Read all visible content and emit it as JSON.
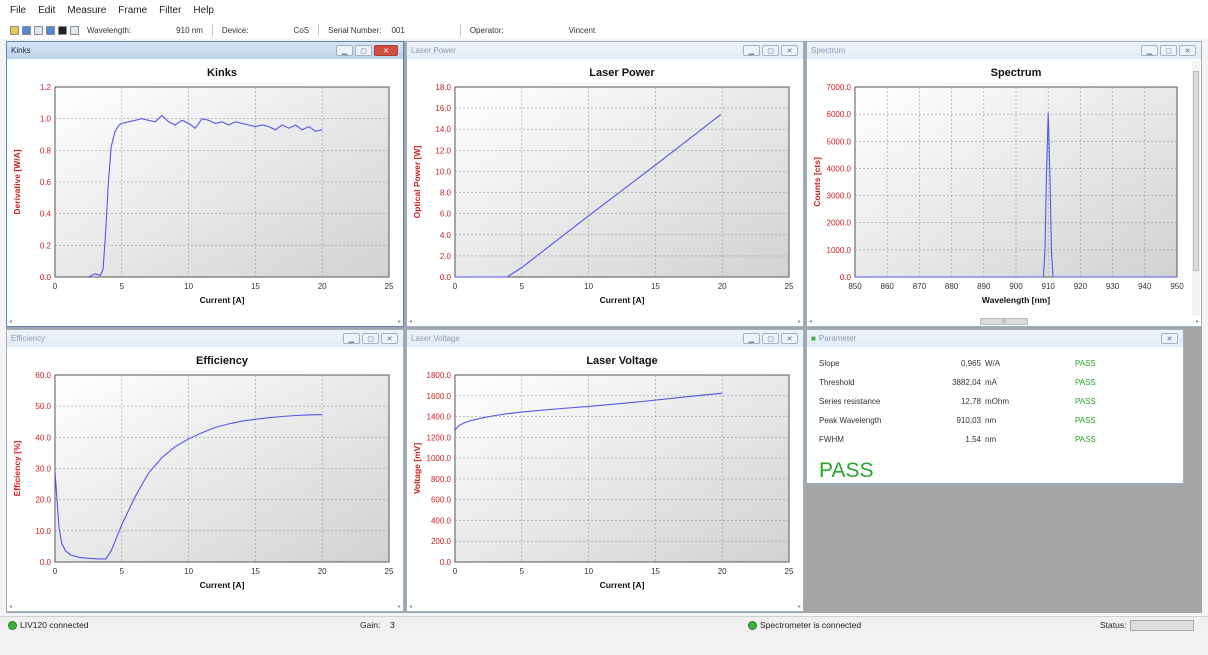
{
  "menu": [
    "File",
    "Edit",
    "Measure",
    "Frame",
    "Filter",
    "Help"
  ],
  "toolbar": {
    "wavelength_label": "Wavelength:",
    "wavelength_value": "910 nm",
    "device_label": "Device:",
    "device_value": "CoS",
    "serial_label": "Serial Number:",
    "serial_value": "001",
    "operator_label": "Operator:",
    "operator_value": "Vincent"
  },
  "windows": {
    "kinks": {
      "title": "Kinks"
    },
    "laser_power": {
      "title": "Laser Power"
    },
    "spectrum": {
      "title": "Spectrum",
      "scroll_label": "III"
    },
    "efficiency": {
      "title": "Efficiency"
    },
    "laser_voltage": {
      "title": "Laser Voltage"
    },
    "parameter": {
      "title": "Parameter"
    }
  },
  "chart_data": [
    {
      "id": "kinks",
      "type": "line",
      "title": "Kinks",
      "xlabel": "Current [A]",
      "ylabel": "Derivative [W/A]",
      "xlim": [
        0,
        25
      ],
      "ylim": [
        0,
        1.2
      ],
      "xticks": [
        "0",
        "5",
        "10",
        "15",
        "20",
        "25"
      ],
      "yticks": [
        "0.0",
        "0.2",
        "0.4",
        "0.6",
        "0.8",
        "1.0",
        "1.2"
      ],
      "grid": true,
      "series": [
        {
          "color": "#5555ee",
          "x": [
            2.5,
            3.0,
            3.4,
            3.6,
            3.8,
            4.0,
            4.2,
            4.5,
            4.8,
            5.0,
            5.5,
            6,
            6.5,
            7,
            7.5,
            8,
            8.5,
            9,
            9.5,
            10,
            10.5,
            11,
            11.5,
            12,
            12.5,
            13,
            13.5,
            14,
            14.5,
            15,
            15.5,
            16,
            16.5,
            17,
            17.5,
            18,
            18.5,
            19,
            19.5,
            20
          ],
          "y": [
            0.0,
            0.02,
            0.01,
            0.05,
            0.3,
            0.6,
            0.82,
            0.92,
            0.96,
            0.97,
            0.98,
            0.99,
            1.0,
            0.99,
            0.98,
            1.02,
            0.98,
            0.96,
            0.99,
            0.97,
            0.94,
            1.0,
            0.99,
            0.97,
            0.98,
            0.96,
            0.98,
            0.97,
            0.96,
            0.95,
            0.96,
            0.95,
            0.93,
            0.96,
            0.94,
            0.96,
            0.93,
            0.95,
            0.92,
            0.93
          ]
        }
      ]
    },
    {
      "id": "laser_power",
      "type": "line",
      "title": "Laser Power",
      "xlabel": "Current [A]",
      "ylabel": "Optical Power [W]",
      "xlim": [
        0,
        25
      ],
      "ylim": [
        0,
        18
      ],
      "xticks": [
        "0",
        "5",
        "10",
        "15",
        "20",
        "25"
      ],
      "yticks": [
        "0.0",
        "2.0",
        "4.0",
        "6.0",
        "8.0",
        "10.0",
        "12.0",
        "14.0",
        "16.0",
        "18.0"
      ],
      "grid": true,
      "series": [
        {
          "color": "#5555ee",
          "x": [
            0,
            3.9,
            5,
            10,
            15,
            19.9
          ],
          "y": [
            0,
            0,
            0.9,
            5.8,
            10.6,
            15.4
          ]
        }
      ]
    },
    {
      "id": "spectrum",
      "type": "line",
      "title": "Spectrum",
      "xlabel": "Wavelength [nm]",
      "ylabel": "Counts [cts]",
      "xlim": [
        850,
        950
      ],
      "ylim": [
        0,
        7000
      ],
      "xticks": [
        "850",
        "860",
        "870",
        "880",
        "890",
        "900",
        "910",
        "920",
        "930",
        "940",
        "950"
      ],
      "yticks": [
        "0.0",
        "1000.0",
        "2000.0",
        "3000.0",
        "4000.0",
        "5000.0",
        "6000.0",
        "7000.0"
      ],
      "grid": true,
      "series": [
        {
          "color": "#5555ee",
          "x": [
            850,
            908.5,
            909.0,
            909.4,
            910.0,
            910.6,
            911.0,
            911.5,
            950
          ],
          "y": [
            0,
            0,
            1000,
            3500,
            6050,
            3500,
            1000,
            0,
            0
          ]
        }
      ]
    },
    {
      "id": "efficiency",
      "type": "line",
      "title": "Efficiency",
      "xlabel": "Current [A]",
      "ylabel": "Efficiency [%]",
      "xlim": [
        0,
        25
      ],
      "ylim": [
        0,
        60
      ],
      "xticks": [
        "0",
        "5",
        "10",
        "15",
        "20",
        "25"
      ],
      "yticks": [
        "0.0",
        "10.0",
        "20.0",
        "30.0",
        "40.0",
        "50.0",
        "60.0"
      ],
      "grid": true,
      "series": [
        {
          "color": "#5555ee",
          "x": [
            0,
            0.15,
            0.3,
            0.5,
            0.8,
            1.2,
            1.8,
            2.5,
            3.2,
            3.8,
            4.2,
            5,
            6,
            7,
            8,
            9,
            10,
            11,
            12,
            13,
            14,
            15,
            16,
            17,
            18,
            19,
            20
          ],
          "y": [
            29,
            20,
            11,
            6,
            3.5,
            2.2,
            1.5,
            1.2,
            1.0,
            1.0,
            3.5,
            12,
            21,
            28.5,
            33.5,
            37,
            39.5,
            41.5,
            43.2,
            44.3,
            45.2,
            45.8,
            46.3,
            46.7,
            47.0,
            47.2,
            47.3
          ]
        }
      ]
    },
    {
      "id": "laser_voltage",
      "type": "line",
      "title": "Laser Voltage",
      "xlabel": "Current [A]",
      "ylabel": "Voltage [mV]",
      "xlim": [
        0,
        25
      ],
      "ylim": [
        0,
        1800
      ],
      "xticks": [
        "0",
        "5",
        "10",
        "15",
        "20",
        "25"
      ],
      "yticks": [
        "0.0",
        "200.0",
        "400.0",
        "600.0",
        "800.0",
        "1000.0",
        "1200.0",
        "1400.0",
        "1600.0",
        "1800.0"
      ],
      "grid": true,
      "series": [
        {
          "color": "#5555ee",
          "x": [
            0,
            0.3,
            0.7,
            1.2,
            2,
            3,
            4,
            5,
            6,
            8,
            10,
            12,
            14,
            16,
            18,
            20
          ],
          "y": [
            1270,
            1315,
            1340,
            1362,
            1385,
            1410,
            1428,
            1443,
            1455,
            1478,
            1498,
            1520,
            1545,
            1572,
            1600,
            1625
          ]
        }
      ]
    }
  ],
  "parameters": {
    "rows": [
      {
        "name": "Slope",
        "value": "0,965",
        "unit": "W/A",
        "result": "PASS"
      },
      {
        "name": "Threshold",
        "value": "3882,04",
        "unit": "mA",
        "result": "PASS"
      },
      {
        "name": "Series resistance",
        "value": "12,78",
        "unit": "mOhm",
        "result": "PASS"
      },
      {
        "name": "Peak Wavelength",
        "value": "910,03",
        "unit": "nm",
        "result": "PASS"
      },
      {
        "name": "FWHM",
        "value": "1,54",
        "unit": "nm",
        "result": "PASS"
      }
    ],
    "overall": "PASS"
  },
  "status": {
    "liv": "LIV120 connected",
    "gain_label": "Gain:",
    "gain_value": "3",
    "spectrometer": "Spectrometer is connected",
    "status_label": "Status:"
  },
  "colors": {
    "pass": "#2aa52a",
    "axis_label": "#cc2020",
    "curve": "#5555ee"
  }
}
